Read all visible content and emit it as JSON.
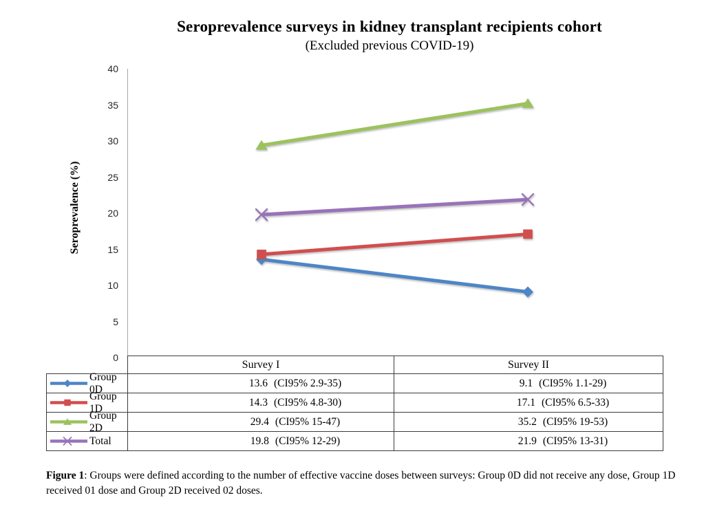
{
  "chart_data": {
    "type": "line",
    "title": "Seroprevalence surveys in kidney transplant recipients cohort",
    "subtitle": "(Excluded previous COVID-19)",
    "xlabel": "",
    "ylabel": "Seroprevalence (%)",
    "ylim": [
      0,
      40
    ],
    "ytick_step": 5,
    "grid": false,
    "legend_position": "table-keys-left",
    "categories": [
      "Survey I",
      "Survey II"
    ],
    "series": [
      {
        "name": "Group 0D",
        "marker": "diamond",
        "color": "#4e86c6",
        "values": [
          13.6,
          9.1
        ],
        "ci": [
          "(CI95% 2.9-35)",
          "(CI95% 1.1-29)"
        ]
      },
      {
        "name": "Group 1D",
        "marker": "square",
        "color": "#d04f4e",
        "values": [
          14.3,
          17.1
        ],
        "ci": [
          "(CI95% 4.8-30)",
          "(CI95% 6.5-33)"
        ]
      },
      {
        "name": "Group 2D",
        "marker": "triangle",
        "color": "#9cc25e",
        "values": [
          29.4,
          35.2
        ],
        "ci": [
          "(CI95% 15-47)",
          "(CI95% 19-53)"
        ]
      },
      {
        "name": "Total",
        "marker": "x",
        "color": "#9873b9",
        "values": [
          19.8,
          21.9
        ],
        "ci": [
          "(CI95% 12-29)",
          "(CI95% 13-31)"
        ]
      }
    ]
  },
  "caption": {
    "label": "Figure 1",
    "text": ": Groups were defined according to the number of effective vaccine doses between surveys: Group 0D did not receive any dose, Group 1D received 01 dose and Group 2D received 02 doses."
  }
}
